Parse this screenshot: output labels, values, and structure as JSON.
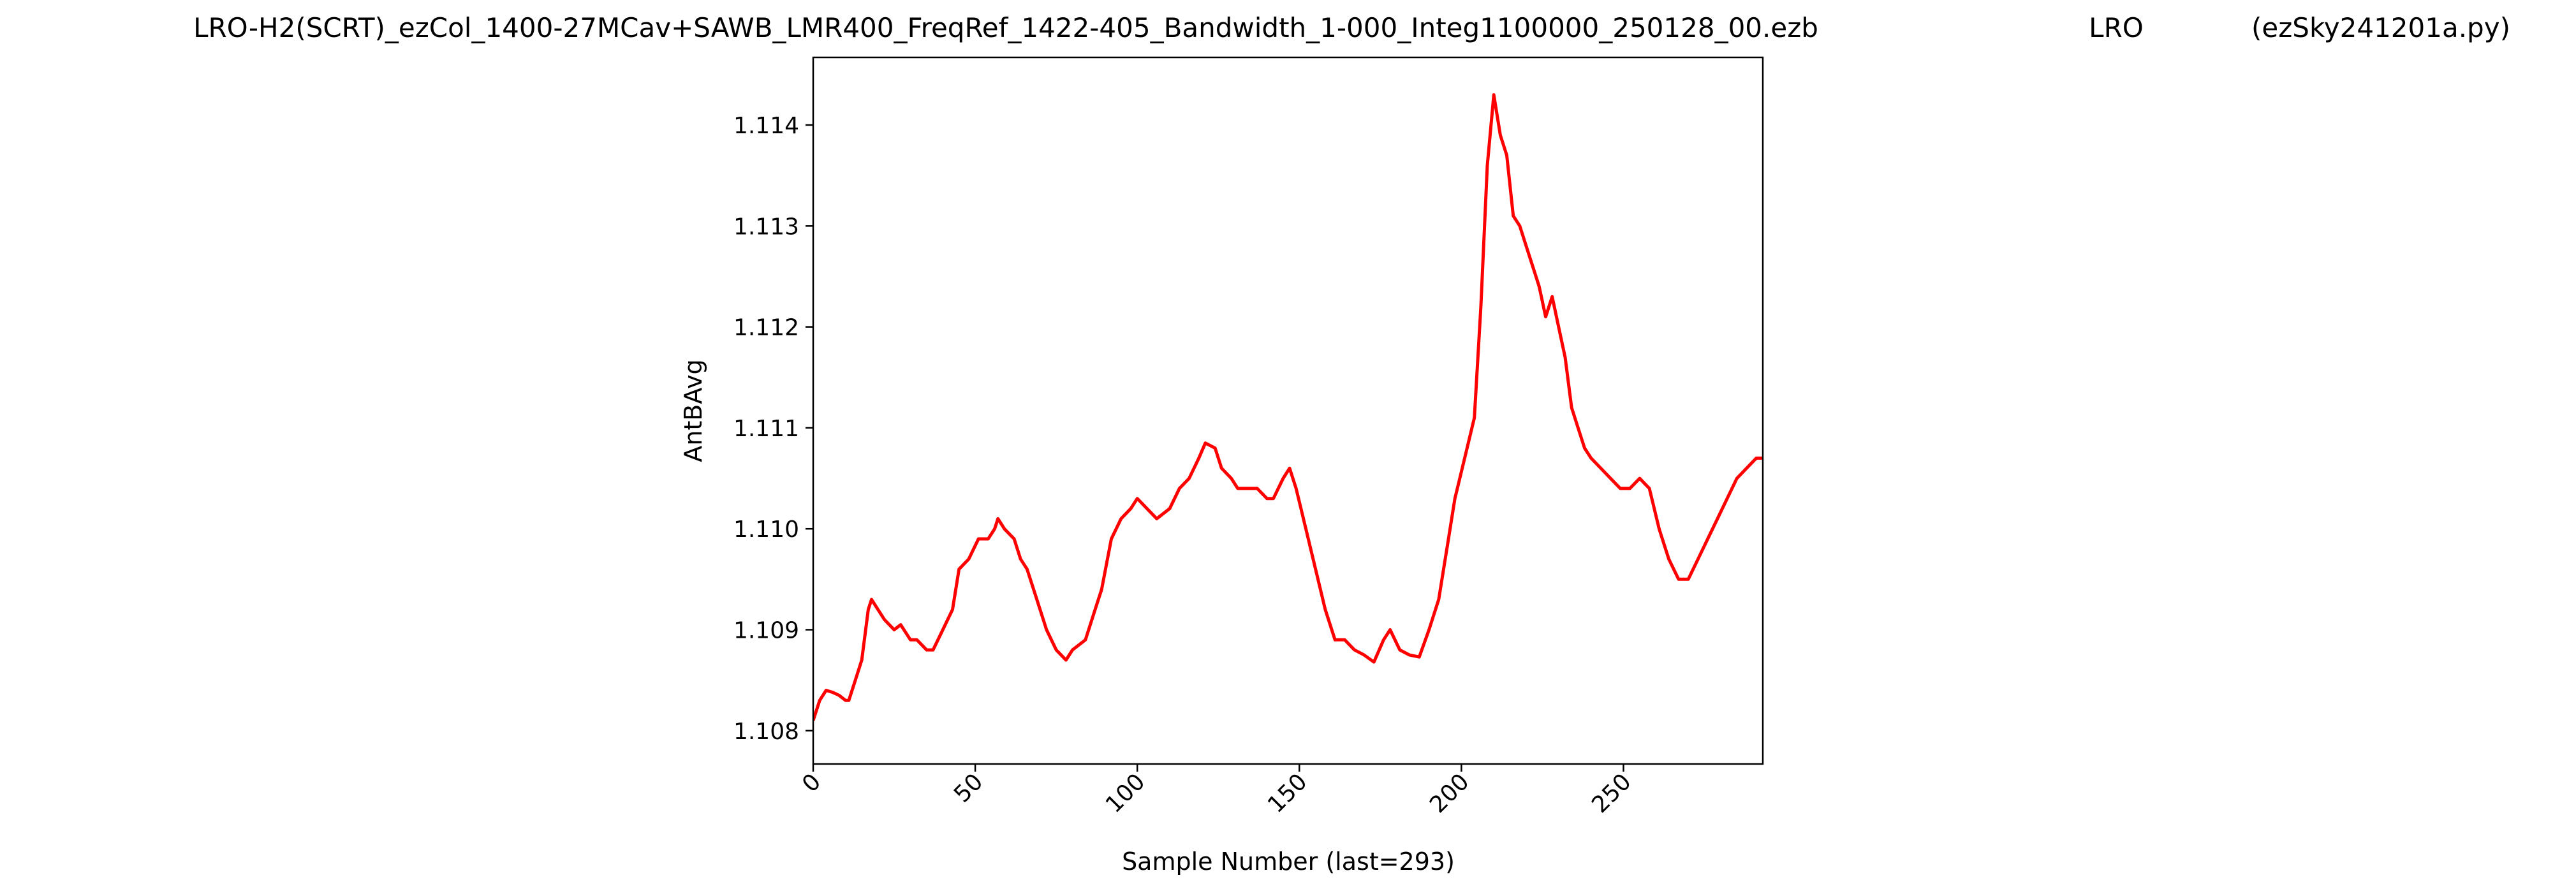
{
  "chart_data": {
    "type": "line",
    "titles": [
      "LRO-H2(SCRT)_ezCol_1400-27MCav+SAWB_LMR400_FreqRef_1422-405_Bandwidth_1-000_Integ1100000_250128_00.ezb",
      "LRO",
      "(ezSky241201a.py)"
    ],
    "x_label": "Sample Number (last=293)",
    "y_label": "AntBAvg",
    "x": [
      0,
      2,
      4,
      6,
      8,
      10,
      11,
      13,
      15,
      17,
      18,
      20,
      22,
      25,
      27,
      30,
      32,
      35,
      37,
      40,
      43,
      45,
      48,
      51,
      54,
      56,
      57,
      59,
      62,
      64,
      66,
      69,
      72,
      75,
      78,
      80,
      84,
      87,
      89,
      92,
      95,
      98,
      100,
      103,
      106,
      110,
      113,
      116,
      119,
      121,
      124,
      126,
      129,
      131,
      134,
      137,
      140,
      142,
      145,
      147,
      149,
      152,
      155,
      158,
      161,
      164,
      167,
      170,
      173,
      176,
      178,
      181,
      184,
      187,
      190,
      193,
      196,
      198,
      201,
      204,
      206,
      208,
      210,
      212,
      214,
      216,
      218,
      220,
      222,
      224,
      226,
      228,
      230,
      232,
      234,
      236,
      238,
      240,
      243,
      246,
      249,
      252,
      255,
      258,
      261,
      264,
      267,
      270,
      273,
      276,
      279,
      282,
      285,
      288,
      291,
      293
    ],
    "series": [
      {
        "color": "#ff0000",
        "values": [
          1.1081,
          1.1083,
          1.1084,
          1.10838,
          1.10835,
          1.1083,
          1.1083,
          1.1085,
          1.1087,
          1.1092,
          1.1093,
          1.1092,
          1.1091,
          1.109,
          1.10905,
          1.1089,
          1.1089,
          1.1088,
          1.1088,
          1.109,
          1.1092,
          1.1096,
          1.1097,
          1.1099,
          1.1099,
          1.11,
          1.1101,
          1.11,
          1.1099,
          1.1097,
          1.1096,
          1.1093,
          1.109,
          1.1088,
          1.1087,
          1.1088,
          1.1089,
          1.1092,
          1.1094,
          1.1099,
          1.1101,
          1.1102,
          1.1103,
          1.1102,
          1.1101,
          1.1102,
          1.1104,
          1.1105,
          1.1107,
          1.11085,
          1.1108,
          1.1106,
          1.1105,
          1.1104,
          1.1104,
          1.1104,
          1.1103,
          1.1103,
          1.1105,
          1.1106,
          1.1104,
          1.11,
          1.1096,
          1.1092,
          1.1089,
          1.1089,
          1.1088,
          1.10875,
          1.10868,
          1.1089,
          1.109,
          1.1088,
          1.10875,
          1.10873,
          1.109,
          1.1093,
          1.1099,
          1.1103,
          1.1107,
          1.1111,
          1.1122,
          1.1136,
          1.1143,
          1.1139,
          1.1137,
          1.1131,
          1.113,
          1.1128,
          1.1126,
          1.1124,
          1.1121,
          1.1123,
          1.112,
          1.1117,
          1.1112,
          1.111,
          1.1108,
          1.1107,
          1.1106,
          1.1105,
          1.1104,
          1.1104,
          1.1105,
          1.1104,
          1.11,
          1.1097,
          1.1095,
          1.1095,
          1.1097,
          1.1099,
          1.1101,
          1.1103,
          1.1105,
          1.1106,
          1.1107,
          1.1107
        ]
      }
    ],
    "xlim": [
      0,
      293
    ],
    "xticks": [
      0,
      50,
      100,
      150,
      200,
      250
    ],
    "ylim": [
      1.10767,
      1.11467
    ],
    "yticks": [
      {
        "value": 1.108,
        "label": "1.108"
      },
      {
        "value": 1.109,
        "label": "1.109"
      },
      {
        "value": 1.11,
        "label": "1.110"
      },
      {
        "value": 1.111,
        "label": "1.111"
      },
      {
        "value": 1.112,
        "label": "1.112"
      },
      {
        "value": 1.113,
        "label": "1.113"
      },
      {
        "value": 1.114,
        "label": "1.114"
      }
    ],
    "grid": false
  }
}
